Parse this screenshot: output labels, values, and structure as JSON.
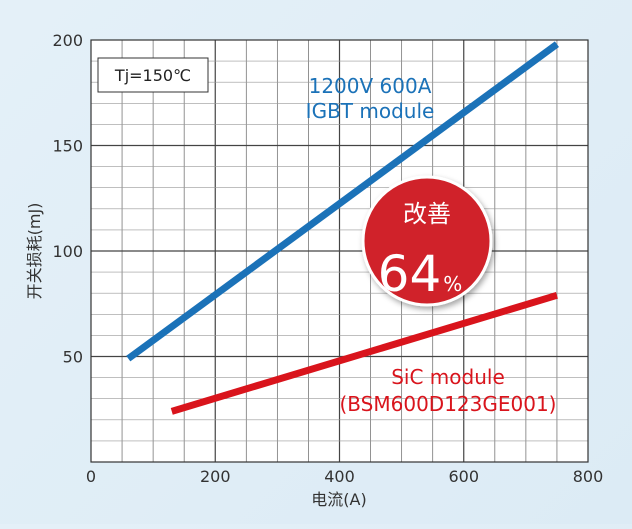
{
  "chart_data": {
    "type": "line",
    "title": "",
    "xlabel": "电流(A)",
    "ylabel": "开关损耗(mJ)",
    "xlim": [
      0,
      800
    ],
    "ylim": [
      0,
      200
    ],
    "x_ticks": [
      "0",
      "200",
      "400",
      "600",
      "800"
    ],
    "y_ticks": [
      "50",
      "100",
      "150",
      "200"
    ],
    "grid": true,
    "condition_label": "Tj=150℃",
    "series": [
      {
        "name": "1200V 600A IGBT module",
        "label_lines": [
          "1200V 600A",
          "IGBT module"
        ],
        "color": "#1b72b8",
        "x": [
          60,
          750
        ],
        "y": [
          49,
          198
        ]
      },
      {
        "name": "SiC module (BSM600D123GE001)",
        "label_lines": [
          "SiC module",
          "(BSM600D123GE001)"
        ],
        "color": "#d9141c",
        "x": [
          130,
          750
        ],
        "y": [
          24,
          79
        ]
      }
    ],
    "badge": {
      "title": "改善",
      "value": "64",
      "unit": "%",
      "color": "#d0232a"
    }
  }
}
